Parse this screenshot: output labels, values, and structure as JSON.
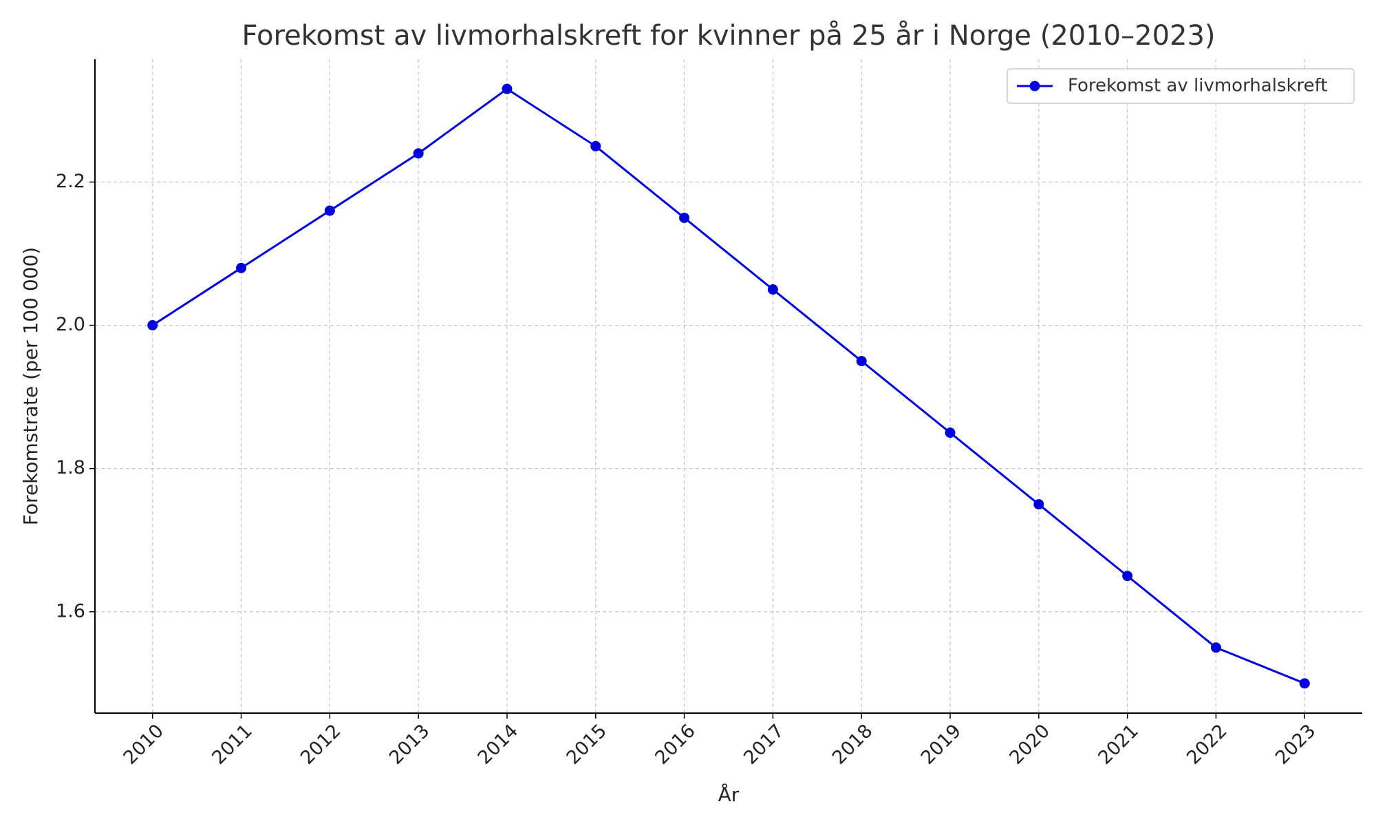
{
  "chart_data": {
    "type": "line",
    "title": "Forekomst av livmorhalskreft for kvinner på 25 år i Norge (2010–2023)",
    "x_label": "År",
    "y_label": "Forekomstrate (per 100 000)",
    "x": [
      2010,
      2011,
      2012,
      2013,
      2014,
      2015,
      2016,
      2017,
      2018,
      2019,
      2020,
      2021,
      2022,
      2023
    ],
    "series": [
      {
        "name": "Forekomst av livmorhalskreft",
        "color": "#0000dd",
        "values": [
          2.0,
          2.08,
          2.16,
          2.24,
          2.33,
          2.25,
          2.15,
          2.05,
          1.95,
          1.85,
          1.75,
          1.65,
          1.55,
          1.5
        ]
      }
    ],
    "xlim": [
      2009.35,
      2023.65
    ],
    "xticks": [
      2010,
      2011,
      2012,
      2013,
      2014,
      2015,
      2016,
      2017,
      2018,
      2019,
      2020,
      2021,
      2022,
      2023
    ],
    "ylim": [
      1.4585,
      2.3715
    ],
    "yticks": [
      1.6,
      1.8,
      {
        "value": 2,
        "label": "2.0"
      },
      2.2
    ],
    "grid": true,
    "legend": "upper right"
  }
}
